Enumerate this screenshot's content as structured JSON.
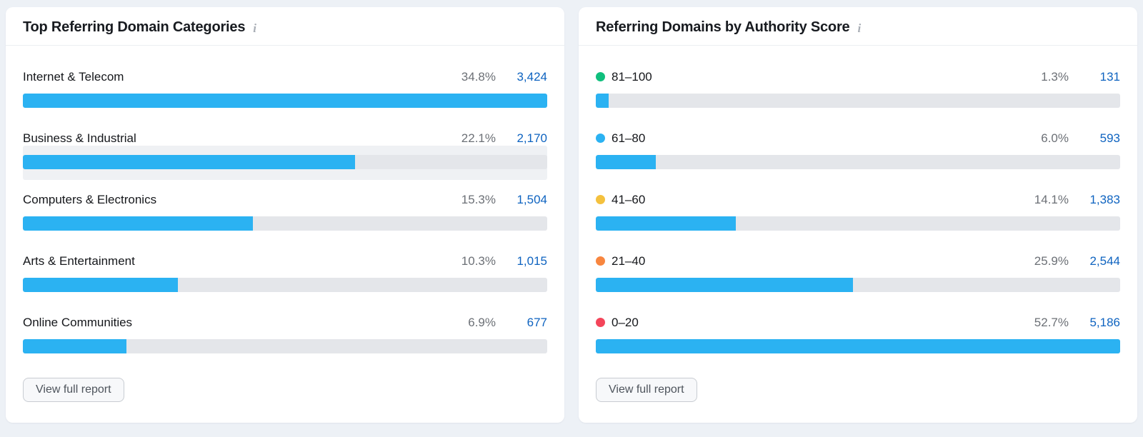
{
  "colors": {
    "page_background": "#edf1f6",
    "bar_fill": "#2bb2f2",
    "bar_track": "#e4e6ea",
    "count_link": "#0e63c0",
    "percent_text": "#6c7076",
    "row_highlight": "#eff1f4"
  },
  "cards": [
    {
      "title": "Top Referring Domain Categories",
      "info_icon": "i",
      "button_label": "View full report",
      "rows": [
        {
          "label": "Internet & Telecom",
          "percent": "34.8%",
          "count": "3,424",
          "fill": "100%",
          "highlighted": false
        },
        {
          "label": "Business & Industrial",
          "percent": "22.1%",
          "count": "2,170",
          "fill": "63.4%",
          "highlighted": true
        },
        {
          "label": "Computers & Electronics",
          "percent": "15.3%",
          "count": "1,504",
          "fill": "43.9%",
          "highlighted": false
        },
        {
          "label": "Arts & Entertainment",
          "percent": "10.3%",
          "count": "1,015",
          "fill": "29.6%",
          "highlighted": false
        },
        {
          "label": "Online Communities",
          "percent": "6.9%",
          "count": "677",
          "fill": "19.8%",
          "highlighted": false
        }
      ]
    },
    {
      "title": "Referring Domains by Authority Score",
      "info_icon": "i",
      "button_label": "View full report",
      "rows": [
        {
          "label": "81–100",
          "dot_color": "#10bf7d",
          "percent": "1.3%",
          "count": "131",
          "fill": "2.5%",
          "highlighted": false
        },
        {
          "label": "61–80",
          "dot_color": "#2bb2f2",
          "percent": "6.0%",
          "count": "593",
          "fill": "11.4%",
          "highlighted": false
        },
        {
          "label": "41–60",
          "dot_color": "#f4c13e",
          "percent": "14.1%",
          "count": "1,383",
          "fill": "26.7%",
          "highlighted": false
        },
        {
          "label": "21–40",
          "dot_color": "#f8863f",
          "percent": "25.9%",
          "count": "2,544",
          "fill": "49.1%",
          "highlighted": false
        },
        {
          "label": "0–20",
          "dot_color": "#f4455a",
          "percent": "52.7%",
          "count": "5,186",
          "fill": "100%",
          "highlighted": false
        }
      ]
    }
  ]
}
